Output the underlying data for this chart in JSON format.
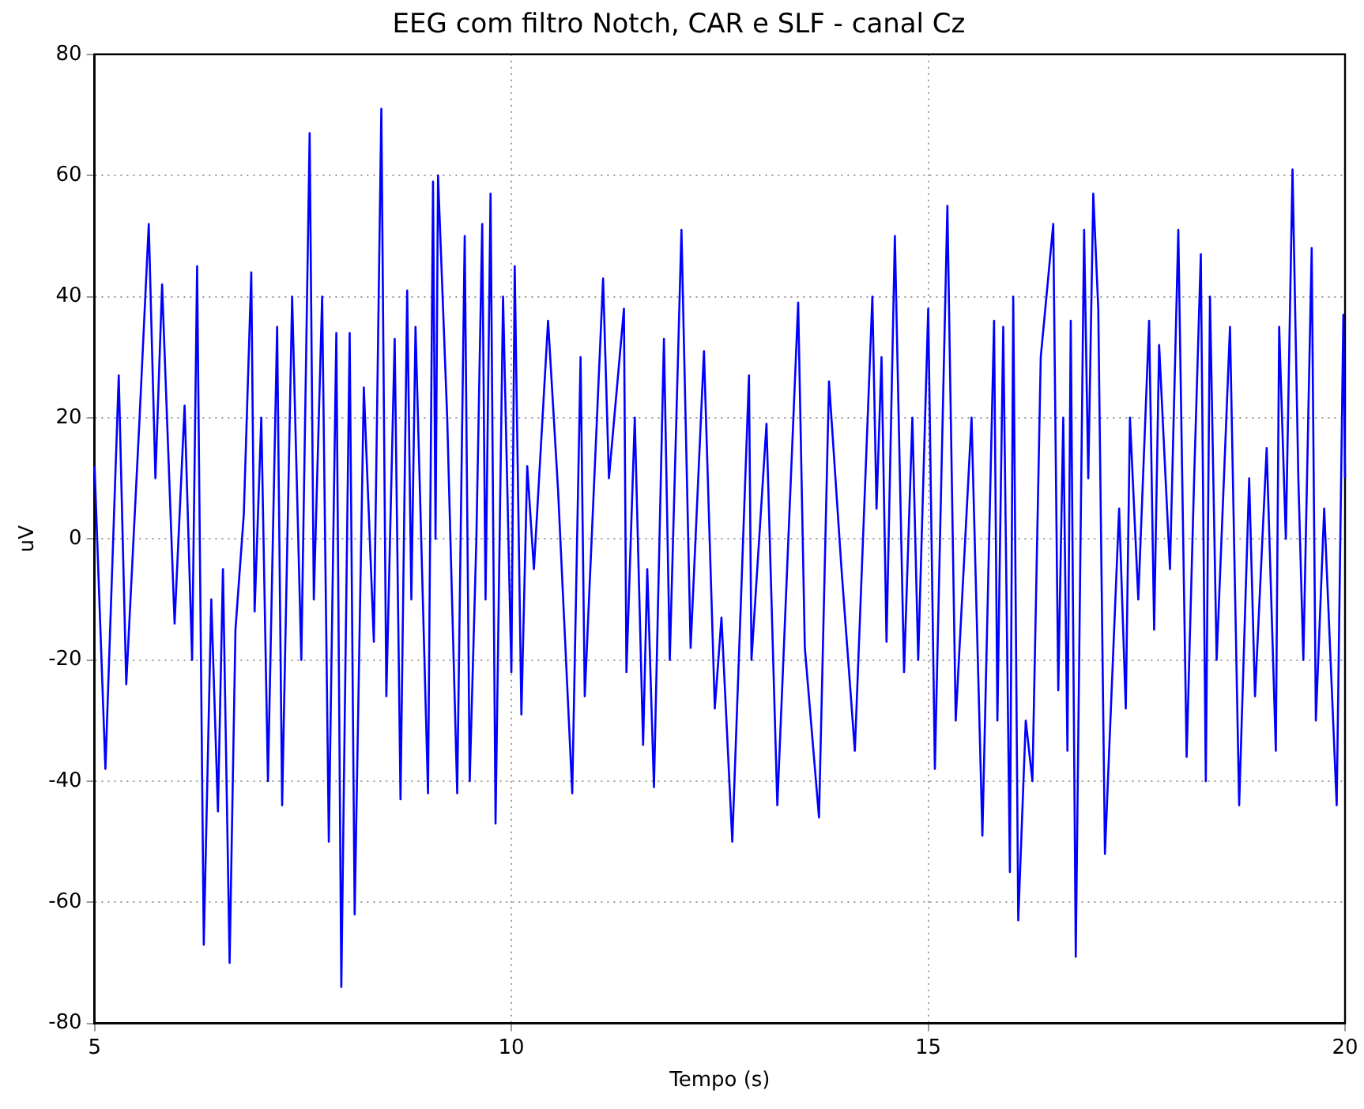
{
  "chart_data": {
    "type": "line",
    "title": "EEG com filtro Notch, CAR e SLF - canal Cz",
    "xlabel": "Tempo (s)",
    "ylabel": "uV",
    "xlim": [
      5,
      20
    ],
    "xticks": [
      5,
      10,
      15,
      20
    ],
    "ylim": [
      -80,
      80
    ],
    "yticks": [
      -80,
      -60,
      -40,
      -20,
      0,
      20,
      40,
      60,
      80
    ],
    "grid": true,
    "legend": false,
    "marker": "none",
    "line_style": "solid",
    "series": [
      {
        "color": "#0000ff",
        "x": [
          5.0,
          5.13,
          5.29,
          5.38,
          5.54,
          5.65,
          5.73,
          5.81,
          5.96,
          6.08,
          6.17,
          6.23,
          6.31,
          6.4,
          6.48,
          6.54,
          6.62,
          6.69,
          6.79,
          6.88,
          6.92,
          7.0,
          7.08,
          7.19,
          7.25,
          7.37,
          7.48,
          7.58,
          7.63,
          7.73,
          7.81,
          7.9,
          7.96,
          8.06,
          8.12,
          8.23,
          8.35,
          8.44,
          8.5,
          8.6,
          8.67,
          8.75,
          8.8,
          8.85,
          9.0,
          9.06,
          9.09,
          9.12,
          9.23,
          9.35,
          9.44,
          9.5,
          9.58,
          9.65,
          9.69,
          9.75,
          9.81,
          9.9,
          10.0,
          10.04,
          10.12,
          10.19,
          10.27,
          10.44,
          10.56,
          10.73,
          10.83,
          10.88,
          11.1,
          11.17,
          11.35,
          11.38,
          11.48,
          11.58,
          11.63,
          11.71,
          11.83,
          11.9,
          12.04,
          12.15,
          12.31,
          12.44,
          12.52,
          12.65,
          12.85,
          12.88,
          13.06,
          13.19,
          13.44,
          13.52,
          13.69,
          13.81,
          13.96,
          14.12,
          14.33,
          14.38,
          14.44,
          14.5,
          14.6,
          14.71,
          14.81,
          14.88,
          15.0,
          15.08,
          15.23,
          15.33,
          15.52,
          15.65,
          15.79,
          15.83,
          15.9,
          15.98,
          16.02,
          16.08,
          16.17,
          16.25,
          16.35,
          16.5,
          16.56,
          16.62,
          16.67,
          16.71,
          16.77,
          16.87,
          16.92,
          16.98,
          17.04,
          17.12,
          17.29,
          17.37,
          17.42,
          17.52,
          17.65,
          17.71,
          17.77,
          17.9,
          18.0,
          18.1,
          18.19,
          18.27,
          18.33,
          18.38,
          18.46,
          18.62,
          18.73,
          18.85,
          18.92,
          19.06,
          19.17,
          19.21,
          19.29,
          19.37,
          19.44,
          19.5,
          19.6,
          19.65,
          19.75,
          19.9,
          19.98,
          20.0
        ],
        "values": [
          12,
          -38,
          27,
          -24,
          20,
          52,
          10,
          42,
          -14,
          22,
          -20,
          45,
          -67,
          -10,
          -45,
          -5,
          -70,
          -15,
          4,
          44,
          -12,
          20,
          -40,
          35,
          -44,
          40,
          -20,
          67,
          -10,
          40,
          -50,
          34,
          -74,
          34,
          -62,
          25,
          -17,
          71,
          -26,
          33,
          -43,
          41,
          -10,
          35,
          -42,
          59,
          0,
          60,
          20,
          -42,
          50,
          -40,
          0,
          52,
          -10,
          57,
          -47,
          40,
          -22,
          45,
          -29,
          12,
          -5,
          36,
          8,
          -42,
          30,
          -26,
          43,
          10,
          38,
          -22,
          20,
          -34,
          -5,
          -41,
          33,
          -20,
          51,
          -18,
          31,
          -28,
          -13,
          -50,
          27,
          -20,
          19,
          -44,
          39,
          -18,
          -46,
          26,
          -5,
          -35,
          40,
          5,
          30,
          -17,
          50,
          -22,
          20,
          -20,
          38,
          -38,
          55,
          -30,
          20,
          -49,
          36,
          -30,
          35,
          -55,
          40,
          -63,
          -30,
          -40,
          30,
          52,
          -25,
          20,
          -35,
          36,
          -69,
          51,
          10,
          57,
          38,
          -52,
          5,
          -28,
          20,
          -10,
          36,
          -15,
          32,
          -5,
          51,
          -36,
          10,
          47,
          -40,
          40,
          -20,
          35,
          -44,
          10,
          -26,
          15,
          -35,
          35,
          0,
          61,
          10,
          -20,
          48,
          -30,
          5,
          -44,
          37,
          10
        ]
      }
    ]
  }
}
